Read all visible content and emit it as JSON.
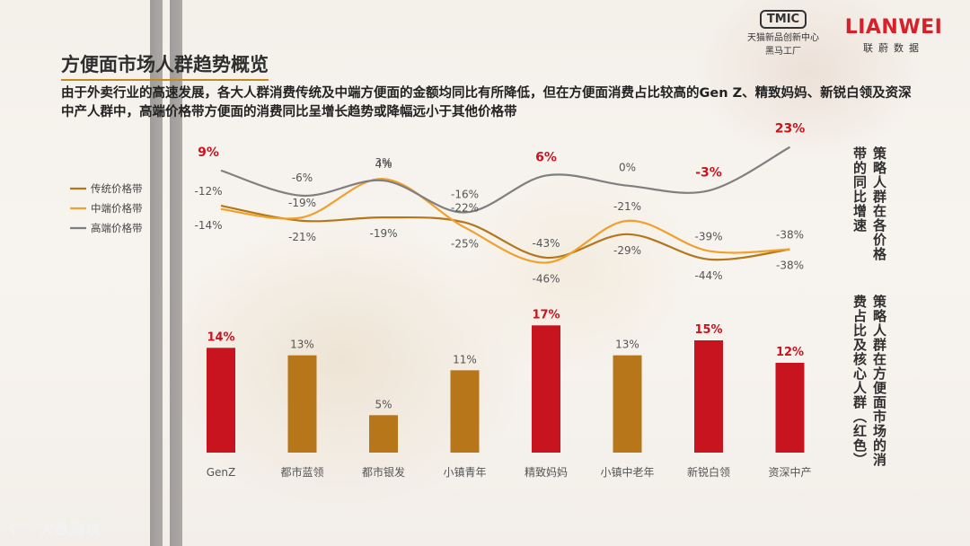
{
  "header": {
    "title": "方便面市场人群趋势概览",
    "subtitle": "由于外卖行业的高速发展，各大人群消费传统及中端方便面的金额均同比有所降低，但在方便面消费占比较高的Gen Z、精致妈妈、新锐白领及资深中产人群中，高端价格带方便面的消费同比呈增长趋势或降幅远小于其他价格带"
  },
  "logos": {
    "tmic_mark": "TMIC",
    "tmic_line1": "天猫新品创新中心",
    "tmic_line2": "黑马工厂",
    "lianwei_name": "LIANWEI",
    "lianwei_sub": "联蔚数据"
  },
  "side_labels": {
    "top": "策略人群在各价格带的同比增速",
    "bottom": "策略人群在方便面市场的消费占比及核心人群（红色）"
  },
  "watermark": {
    "text": "大数跨境",
    "icon": "logo-icon"
  },
  "colors": {
    "traditional": "#b5761a",
    "mid": "#f0a02c",
    "high": "#7f7f7f",
    "core": "#c8141e",
    "normal": "#b8761a",
    "highlight_text": "#c8141e",
    "label_text": "#555555"
  },
  "chart_data": [
    {
      "type": "line",
      "categories": [
        "GenZ",
        "都市蓝领",
        "都市银发",
        "小镇青年",
        "精致妈妈",
        "小镇中老年",
        "新锐白领",
        "资深中产"
      ],
      "series": [
        {
          "name": "传统价格带",
          "values": [
            -12,
            -21,
            -19,
            -22,
            -43,
            -29,
            -44,
            -38
          ]
        },
        {
          "name": "中端价格带",
          "values": [
            -14,
            -19,
            4,
            -25,
            -46,
            -21,
            -39,
            -38
          ]
        },
        {
          "name": "高端价格带",
          "values": [
            9,
            -6,
            3,
            -16,
            6,
            0,
            -3,
            23
          ]
        }
      ],
      "value_labels": {
        "传统价格带": [
          "-12%",
          "-21%",
          "-19%",
          "-22%",
          "-43%",
          "-29%",
          "-44%",
          "-38%"
        ],
        "中端价格带": [
          "-14%",
          "-19%",
          "4%",
          "-25%",
          "-46%",
          "-21%",
          "-39%",
          "-38%"
        ],
        "高端价格带": [
          "9%",
          "-6%",
          "3%",
          "-16%",
          "6%",
          "0%",
          "-3%",
          "23%"
        ]
      },
      "ylim": [
        -50,
        25
      ],
      "legend": "left",
      "grid": false
    },
    {
      "type": "bar",
      "categories": [
        "GenZ",
        "都市蓝领",
        "都市银发",
        "小镇青年",
        "精致妈妈",
        "小镇中老年",
        "新锐白领",
        "资深中产"
      ],
      "values": [
        14,
        13,
        5,
        11,
        17,
        13,
        15,
        12
      ],
      "value_labels": [
        "14%",
        "13%",
        "5%",
        "11%",
        "17%",
        "13%",
        "15%",
        "12%"
      ],
      "core": [
        true,
        false,
        false,
        false,
        true,
        false,
        true,
        true
      ],
      "ylim": [
        0,
        18
      ],
      "grid": false
    }
  ]
}
